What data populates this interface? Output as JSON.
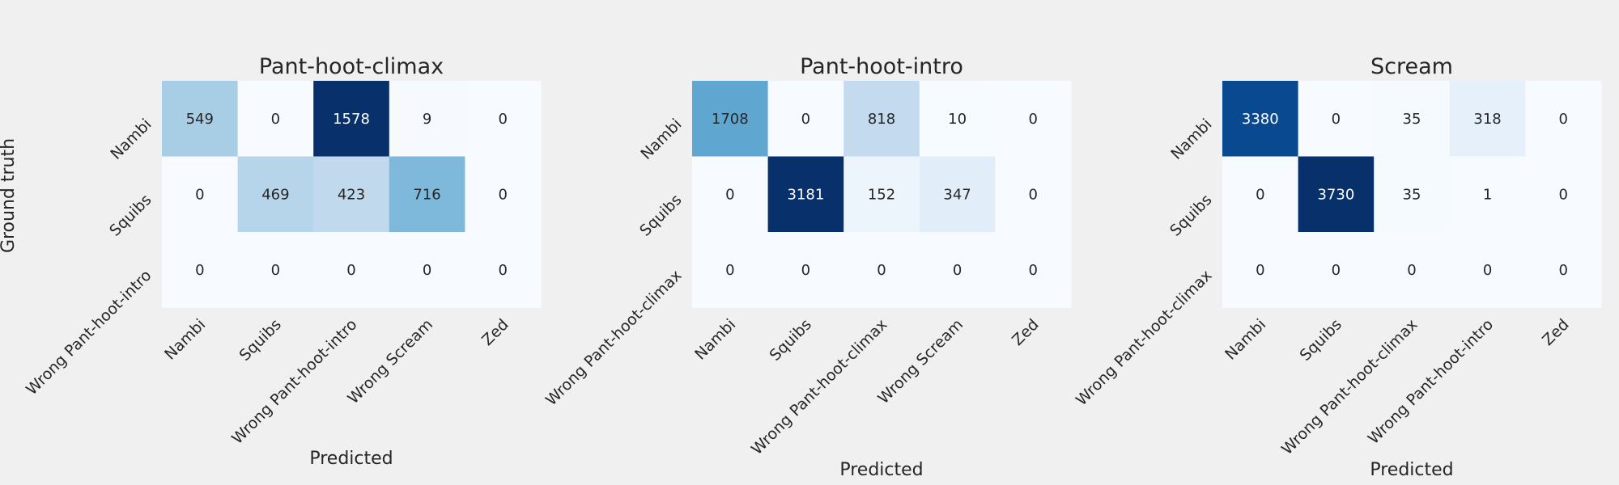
{
  "figure": {
    "ylabel": "Ground truth",
    "colormap": "Blues"
  },
  "chart_data": [
    {
      "type": "heatmap",
      "title": "Pant-hoot-climax",
      "xlabel": "Predicted",
      "ylabel": "Ground truth",
      "x_categories": [
        "Nambi",
        "Squibs",
        "Wrong Pant-hoot-intro",
        "Wrong Scream",
        "Zed"
      ],
      "y_categories": [
        "Nambi",
        "Squibs",
        "Wrong Pant-hoot-intro"
      ],
      "values": [
        [
          549,
          0,
          1578,
          9,
          0
        ],
        [
          0,
          469,
          423,
          716,
          0
        ],
        [
          0,
          0,
          0,
          0,
          0
        ]
      ]
    },
    {
      "type": "heatmap",
      "title": "Pant-hoot-intro",
      "xlabel": "Predicted",
      "ylabel": "",
      "x_categories": [
        "Nambi",
        "Squibs",
        "Wrong Pant-hoot-climax",
        "Wrong Scream",
        "Zed"
      ],
      "y_categories": [
        "Nambi",
        "Squibs",
        "Wrong Pant-hoot-climax"
      ],
      "values": [
        [
          1708,
          0,
          818,
          10,
          0
        ],
        [
          0,
          3181,
          152,
          347,
          0
        ],
        [
          0,
          0,
          0,
          0,
          0
        ]
      ]
    },
    {
      "type": "heatmap",
      "title": "Scream",
      "xlabel": "Predicted",
      "ylabel": "",
      "x_categories": [
        "Nambi",
        "Squibs",
        "Wrong Pant-hoot-climax",
        "Wrong Pant-hoot-intro",
        "Zed"
      ],
      "y_categories": [
        "Nambi",
        "Squibs",
        "Wrong Pant-hoot-climax"
      ],
      "values": [
        [
          3380,
          0,
          35,
          318,
          0
        ],
        [
          0,
          3730,
          35,
          1,
          0
        ],
        [
          0,
          0,
          0,
          0,
          0
        ]
      ]
    }
  ]
}
